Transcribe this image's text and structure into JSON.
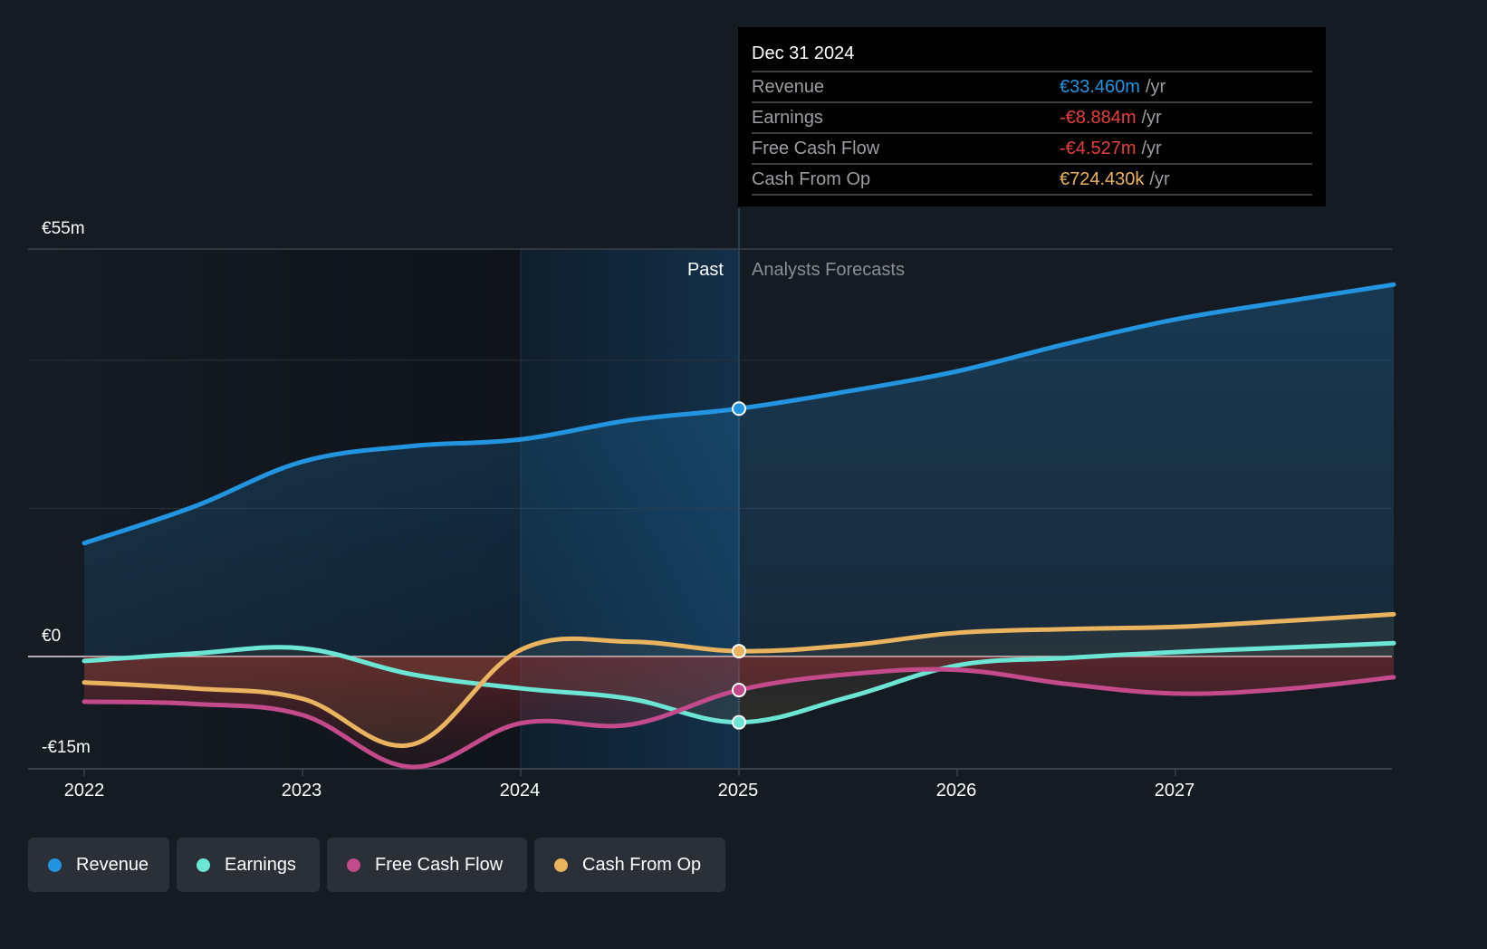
{
  "tooltip": {
    "date": "Dec 31 2024",
    "unit": "/yr",
    "rows": [
      {
        "label": "Revenue",
        "value": "€33.460m",
        "color": "#2394df"
      },
      {
        "label": "Earnings",
        "value": "-€8.884m",
        "color": "#e64141"
      },
      {
        "label": "Free Cash Flow",
        "value": "-€4.527m",
        "color": "#e64141"
      },
      {
        "label": "Cash From Op",
        "value": "€724.430k",
        "color": "#e9b35f"
      }
    ]
  },
  "regions": {
    "past": "Past",
    "forecast": "Analysts Forecasts"
  },
  "legend": [
    {
      "label": "Revenue",
      "color": "#2394df"
    },
    {
      "label": "Earnings",
      "color": "#6ce5d5"
    },
    {
      "label": "Free Cash Flow",
      "color": "#c34a8b"
    },
    {
      "label": "Cash From Op",
      "color": "#e9b35f"
    }
  ],
  "chart_data": {
    "type": "line",
    "title": "",
    "xlabel": "",
    "ylabel": "",
    "y_tick_labels": [
      "€55m",
      "€0",
      "-€15m"
    ],
    "y_ticks": [
      55,
      0,
      -15
    ],
    "ylim": [
      -15,
      55
    ],
    "x_tick_labels": [
      "2022",
      "2023",
      "2024",
      "2025",
      "2026",
      "2027"
    ],
    "x_ticks": [
      2022,
      2023,
      2024,
      2025,
      2026,
      2027
    ],
    "xlim": [
      2021.75,
      2028
    ],
    "past_end": 2025,
    "highlight_start": 2024,
    "grid": true,
    "legend_position": "bottom-left",
    "x": [
      2022,
      2022.5,
      2023,
      2023.5,
      2024,
      2024.5,
      2025,
      2025.5,
      2026,
      2026.5,
      2027,
      2027.5,
      2028
    ],
    "series": [
      {
        "name": "Revenue",
        "color": "#2394df",
        "values": [
          15.3,
          20.2,
          26.3,
          28.4,
          29.3,
          31.9,
          33.46,
          35.8,
          38.5,
          42.2,
          45.5,
          47.9,
          50.2
        ]
      },
      {
        "name": "Earnings",
        "color": "#6ce5d5",
        "values": [
          -0.6,
          0.4,
          1.1,
          -2.4,
          -4.3,
          -5.7,
          -8.884,
          -5.5,
          -1.2,
          -0.2,
          0.6,
          1.2,
          1.8
        ]
      },
      {
        "name": "Free Cash Flow",
        "color": "#c34a8b",
        "values": [
          -6.1,
          -6.4,
          -7.9,
          -14.9,
          -9.0,
          -9.2,
          -4.527,
          -2.4,
          -1.8,
          -3.7,
          -5.0,
          -4.4,
          -2.8
        ]
      },
      {
        "name": "Cash From Op",
        "color": "#e9b35f",
        "values": [
          -3.5,
          -4.3,
          -5.7,
          -11.9,
          0.9,
          2.0,
          0.724,
          1.5,
          3.2,
          3.7,
          4.0,
          4.8,
          5.7
        ]
      }
    ],
    "marker_x": 2025
  }
}
